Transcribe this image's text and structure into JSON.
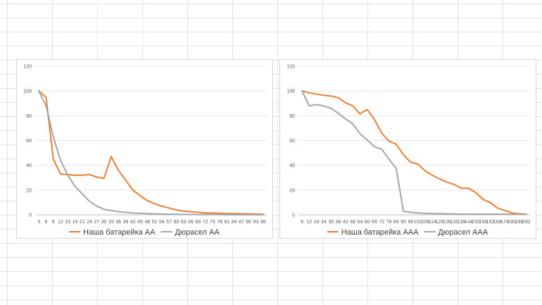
{
  "chart_data": [
    {
      "type": "line",
      "ylim": [
        0,
        120
      ],
      "yticks": [
        0,
        20,
        40,
        60,
        80,
        100,
        120
      ],
      "x": [
        3,
        6,
        9,
        12,
        15,
        18,
        21,
        24,
        27,
        30,
        33,
        36,
        39,
        42,
        45,
        48,
        51,
        54,
        57,
        60,
        63,
        66,
        69,
        72,
        75,
        78,
        81,
        84,
        87,
        90,
        93,
        96
      ],
      "series": [
        {
          "name": "Наша батарейка АА",
          "color": "#ed7d31",
          "values": [
            100,
            95,
            45,
            33,
            32.5,
            32,
            32,
            32.5,
            30.5,
            29.5,
            47,
            36,
            28,
            20,
            15.5,
            11.5,
            9,
            7,
            5.5,
            4,
            3,
            2.5,
            2,
            1.5,
            1.5,
            1.2,
            1,
            1,
            0.8,
            0.8,
            0.6,
            0.5
          ]
        },
        {
          "name": "Дюрасел АА",
          "color": "#a5a5a5",
          "values": [
            100,
            88,
            63,
            44,
            32,
            23,
            17,
            11,
            7,
            4.5,
            3.5,
            2.5,
            2,
            1.5,
            1.2,
            1,
            0.8,
            0.6,
            0.5,
            0.4,
            0.3,
            0.3,
            0.2,
            0.2,
            0.2,
            0.2,
            0.1,
            0.1,
            0.1,
            0.1,
            0.1,
            0.1
          ]
        }
      ],
      "legend_position": "bottom"
    },
    {
      "type": "line",
      "ylim": [
        0,
        120
      ],
      "yticks": [
        0,
        20,
        40,
        60,
        80,
        100,
        120
      ],
      "x": [
        6,
        12,
        18,
        24,
        30,
        36,
        42,
        48,
        54,
        60,
        66,
        72,
        78,
        84,
        90,
        96,
        102,
        108,
        114,
        120,
        126,
        132,
        138,
        144,
        150,
        156,
        162,
        168,
        174,
        180,
        186,
        192
      ],
      "series": [
        {
          "name": "Наша батарейка AAA",
          "color": "#ed7d31",
          "values": [
            100,
            98.5,
            97.5,
            96.5,
            96,
            94.5,
            90.5,
            88,
            81.5,
            85,
            77,
            66,
            59.5,
            57,
            48.5,
            42.5,
            41,
            35.5,
            32,
            29,
            26.5,
            24.5,
            21.5,
            21.5,
            18,
            12.5,
            10,
            5.5,
            3.5,
            1.5,
            0.8,
            0.6
          ]
        },
        {
          "name": "Дюрасел AAA",
          "color": "#a5a5a5",
          "values": [
            100,
            88,
            89,
            88,
            86,
            82,
            77.5,
            73.5,
            65.5,
            60.5,
            55,
            53,
            45,
            37.5,
            3,
            2,
            1.5,
            1.2,
            1,
            1,
            0.8,
            0.7,
            0.6,
            0.6,
            0.5,
            0.5,
            0.5,
            0.5,
            0.5,
            0.4,
            0.4,
            0.4
          ]
        }
      ],
      "legend_position": "bottom"
    }
  ]
}
